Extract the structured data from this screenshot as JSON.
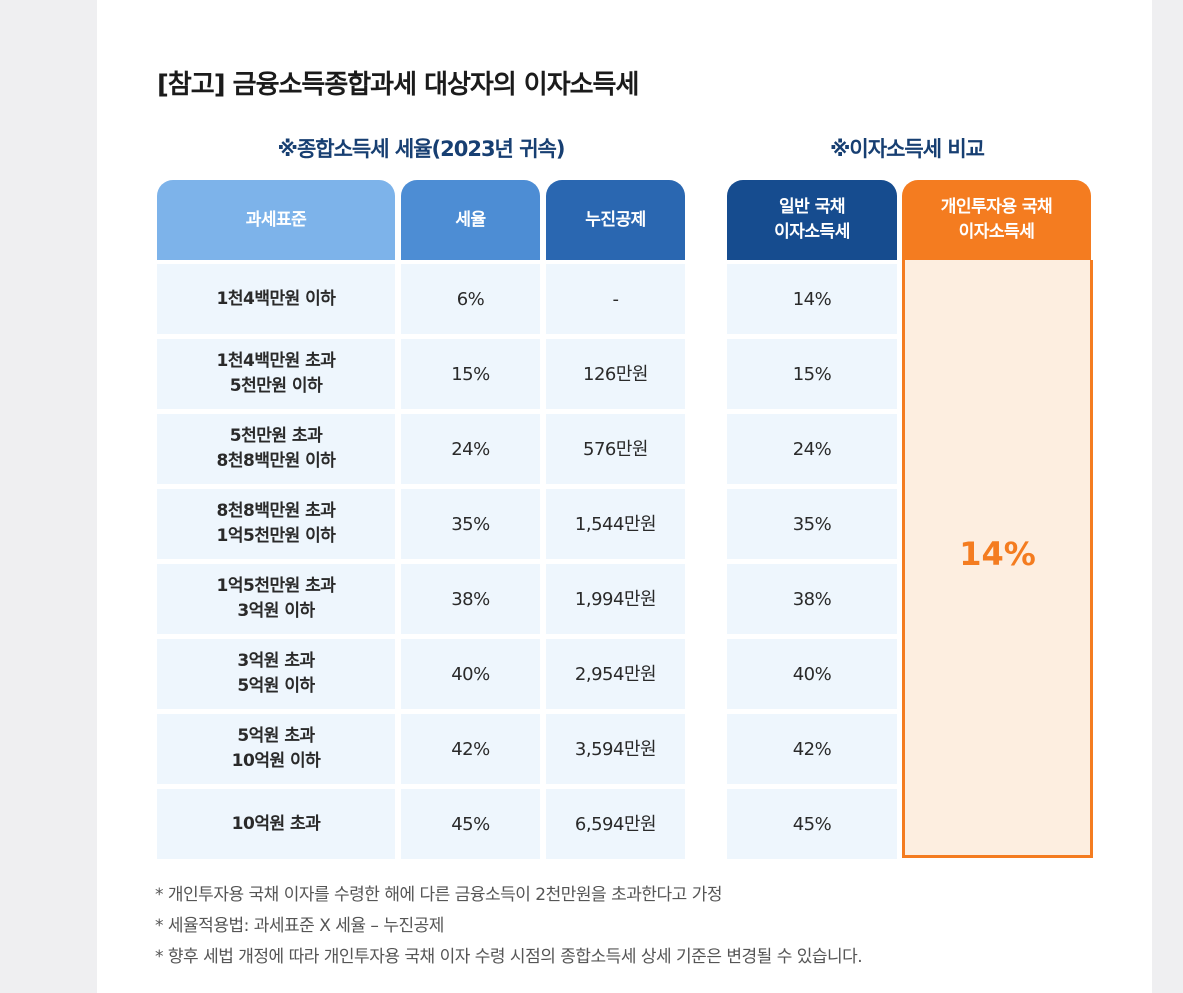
{
  "title": "[참고] 금융소득종합과세 대상자의 이자소득세",
  "subtitles": {
    "left": "※종합소득세 세율(2023년 귀속)",
    "right": "※이자소득세 비교"
  },
  "headers": {
    "base": "과세표준",
    "rate": "세율",
    "deduction": "누진공제",
    "general_line1": "일반 국채",
    "general_line2": "이자소득세",
    "personal_line1": "개인투자용 국채",
    "personal_line2": "이자소득세"
  },
  "colors": {
    "header_light": "#7db3ea",
    "header_mid": "#4d8dd4",
    "header_dark": "#2a67b1",
    "header_navy": "#164c8f",
    "accent_orange": "#f47c20",
    "cell_bg": "#eef6fd"
  },
  "rows": [
    {
      "base1": "1천4백만원 이하",
      "base2": "",
      "rate": "6%",
      "deduction": "-",
      "general": "14%"
    },
    {
      "base1": "1천4백만원 초과",
      "base2": "5천만원 이하",
      "rate": "15%",
      "deduction": "126만원",
      "general": "15%"
    },
    {
      "base1": "5천만원 초과",
      "base2": "8천8백만원 이하",
      "rate": "24%",
      "deduction": "576만원",
      "general": "24%"
    },
    {
      "base1": "8천8백만원 초과",
      "base2": "1억5천만원 이하",
      "rate": "35%",
      "deduction": "1,544만원",
      "general": "35%"
    },
    {
      "base1": "1억5천만원 초과",
      "base2": "3억원 이하",
      "rate": "38%",
      "deduction": "1,994만원",
      "general": "38%"
    },
    {
      "base1": "3억원 초과",
      "base2": "5억원 이하",
      "rate": "40%",
      "deduction": "2,954만원",
      "general": "40%"
    },
    {
      "base1": "5억원 초과",
      "base2": "10억원 이하",
      "rate": "42%",
      "deduction": "3,594만원",
      "general": "42%"
    },
    {
      "base1": "10억원 초과",
      "base2": "",
      "rate": "45%",
      "deduction": "6,594만원",
      "general": "45%"
    }
  ],
  "personal_rate": "14%",
  "notes": [
    "* 개인투자용 국채 이자를 수령한 해에 다른 금융소득이 2천만원을 초과한다고 가정",
    "* 세율적용법: 과세표준 X 세율 – 누진공제",
    "* 향후 세법 개정에 따라 개인투자용 국채 이자 수령 시점의 종합소득세 상세 기준은 변경될 수 있습니다."
  ]
}
